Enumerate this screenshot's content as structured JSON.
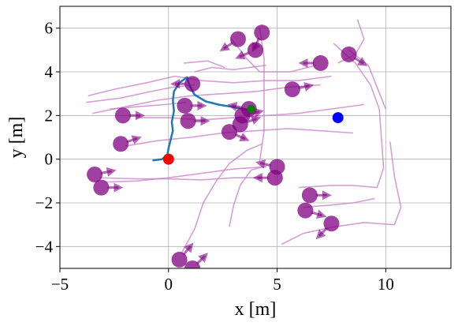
{
  "chart_data": {
    "type": "scatter",
    "title": "",
    "xlabel": "x [m]",
    "ylabel": "y [m]",
    "xlim": [
      -5,
      13
    ],
    "ylim": [
      -5,
      7
    ],
    "xticks": [
      -5,
      0,
      5,
      10
    ],
    "yticks": [
      -4,
      -2,
      0,
      2,
      4,
      6
    ],
    "xtick_labels": [
      "−5",
      "0",
      "5",
      "10"
    ],
    "ytick_labels": [
      "−4",
      "−2",
      "0",
      "2",
      "4",
      "6"
    ],
    "grid": true,
    "colors": {
      "agent": "#800080",
      "trail": "#c77fc7",
      "robot_path": "#1f77b4",
      "start": "#ff0000",
      "goal": "#0000ff",
      "current": "#008000"
    },
    "robot_path": [
      [
        -0.7,
        -0.05
      ],
      [
        -0.3,
        0.0
      ],
      [
        -0.05,
        0.2
      ],
      [
        0.0,
        0.5
      ],
      [
        0.1,
        0.9
      ],
      [
        0.2,
        1.3
      ],
      [
        0.15,
        1.7
      ],
      [
        0.25,
        2.2
      ],
      [
        0.2,
        2.7
      ],
      [
        0.25,
        3.1
      ],
      [
        0.5,
        3.5
      ],
      [
        0.85,
        3.75
      ],
      [
        0.95,
        3.4
      ],
      [
        1.2,
        2.95
      ],
      [
        1.7,
        2.65
      ],
      [
        2.3,
        2.5
      ],
      [
        2.9,
        2.4
      ],
      [
        3.4,
        2.3
      ],
      [
        3.8,
        2.25
      ]
    ],
    "start": [
      0.0,
      0.0
    ],
    "goal": [
      7.8,
      1.9
    ],
    "current": [
      3.8,
      2.3
    ],
    "agents": [
      {
        "x": 1.1,
        "y": 3.45,
        "dx": -1.0,
        "dy": 0.0
      },
      {
        "x": 3.2,
        "y": 5.5,
        "dx": -0.6,
        "dy": -0.4
      },
      {
        "x": 4.3,
        "y": 5.8,
        "dx": -0.3,
        "dy": -0.6
      },
      {
        "x": 4.0,
        "y": 5.0,
        "dx": -0.7,
        "dy": -0.3
      },
      {
        "x": 7.0,
        "y": 4.4,
        "dx": -1.0,
        "dy": 0.0
      },
      {
        "x": 8.3,
        "y": 4.8,
        "dx": 0.8,
        "dy": -0.5
      },
      {
        "x": 5.7,
        "y": 3.2,
        "dx": 1.0,
        "dy": 0.2
      },
      {
        "x": 0.75,
        "y": 2.45,
        "dx": 1.0,
        "dy": 0.0
      },
      {
        "x": 3.7,
        "y": 2.3,
        "dx": -1.0,
        "dy": 0.2
      },
      {
        "x": 3.4,
        "y": 2.0,
        "dx": 0.9,
        "dy": 0.2
      },
      {
        "x": 3.3,
        "y": 1.6,
        "dx": 0.9,
        "dy": 0.3
      },
      {
        "x": 2.8,
        "y": 1.25,
        "dx": 0.9,
        "dy": -0.4
      },
      {
        "x": 0.9,
        "y": 1.75,
        "dx": 1.0,
        "dy": 0.0
      },
      {
        "x": -2.1,
        "y": 2.0,
        "dx": 1.0,
        "dy": 0.0
      },
      {
        "x": -2.2,
        "y": 0.7,
        "dx": 0.9,
        "dy": 0.3
      },
      {
        "x": -3.4,
        "y": -0.7,
        "dx": 1.0,
        "dy": 0.2
      },
      {
        "x": -3.1,
        "y": -1.3,
        "dx": 1.0,
        "dy": 0.0
      },
      {
        "x": 5.0,
        "y": -0.35,
        "dx": -0.9,
        "dy": 0.2
      },
      {
        "x": 4.9,
        "y": -0.85,
        "dx": -0.9,
        "dy": 0.0
      },
      {
        "x": 6.5,
        "y": -1.65,
        "dx": 1.0,
        "dy": 0.0
      },
      {
        "x": 6.3,
        "y": -2.35,
        "dx": 1.0,
        "dy": -0.3
      },
      {
        "x": 7.5,
        "y": -2.95,
        "dx": -0.6,
        "dy": -0.6
      },
      {
        "x": 0.5,
        "y": -4.6,
        "dx": 0.5,
        "dy": 0.6
      },
      {
        "x": 1.1,
        "y": -5.0,
        "dx": 0.6,
        "dy": 0.6
      }
    ],
    "trails": [
      [
        [
          -3.7,
          2.9
        ],
        [
          -2.5,
          3.2
        ],
        [
          -1.0,
          3.5
        ],
        [
          0.3,
          3.8
        ],
        [
          1.5,
          3.6
        ],
        [
          3.0,
          3.5
        ],
        [
          4.5,
          3.6
        ],
        [
          6.0,
          3.6
        ],
        [
          7.5,
          3.8
        ]
      ],
      [
        [
          -3.5,
          2.1
        ],
        [
          -2.0,
          2.4
        ],
        [
          -0.5,
          2.7
        ],
        [
          1.0,
          2.9
        ],
        [
          2.5,
          3.0
        ],
        [
          4.0,
          3.1
        ],
        [
          5.5,
          3.3
        ],
        [
          7.0,
          3.4
        ]
      ],
      [
        [
          -3.8,
          2.6
        ],
        [
          -2.2,
          2.8
        ],
        [
          -0.8,
          3.1
        ],
        [
          0.2,
          3.3
        ],
        [
          1.2,
          3.4
        ]
      ],
      [
        [
          -2.7,
          2.3
        ],
        [
          -1.5,
          2.4
        ],
        [
          -0.2,
          2.5
        ],
        [
          0.8,
          2.6
        ]
      ],
      [
        [
          -2.0,
          0.6
        ],
        [
          -0.5,
          0.85
        ],
        [
          1.0,
          1.0
        ],
        [
          2.5,
          1.2
        ],
        [
          4.0,
          1.3
        ],
        [
          5.5,
          1.4
        ],
        [
          7.0,
          1.3
        ],
        [
          8.5,
          1.2
        ]
      ],
      [
        [
          -1.5,
          1.9
        ],
        [
          0.0,
          1.9
        ],
        [
          1.5,
          1.8
        ],
        [
          3.0,
          1.9
        ],
        [
          4.5,
          2.0
        ],
        [
          6.0,
          2.1
        ],
        [
          7.5,
          2.3
        ],
        [
          9.0,
          2.5
        ]
      ],
      [
        [
          -3.2,
          -0.85
        ],
        [
          -1.5,
          -0.9
        ],
        [
          0.0,
          -0.9
        ],
        [
          1.5,
          -0.95
        ],
        [
          3.0,
          -0.85
        ],
        [
          4.3,
          -0.85
        ]
      ],
      [
        [
          -2.9,
          -1.05
        ],
        [
          -1.5,
          -1.0
        ],
        [
          0.0,
          -0.85
        ],
        [
          1.5,
          -0.65
        ],
        [
          3.0,
          -0.45
        ],
        [
          4.5,
          -0.35
        ]
      ],
      [
        [
          0.6,
          -4.3
        ],
        [
          1.2,
          -3.2
        ],
        [
          1.6,
          -2.0
        ],
        [
          2.2,
          -1.0
        ],
        [
          2.8,
          -0.2
        ],
        [
          3.6,
          0.4
        ],
        [
          4.3,
          0.7
        ]
      ],
      [
        [
          2.8,
          -3.1
        ],
        [
          3.0,
          -2.1
        ],
        [
          3.3,
          -1.2
        ],
        [
          3.8,
          -0.5
        ],
        [
          4.5,
          -0.3
        ]
      ],
      [
        [
          6.0,
          -1.3
        ],
        [
          7.5,
          -1.2
        ],
        [
          8.5,
          -1.2
        ],
        [
          9.6,
          -1.3
        ],
        [
          9.9,
          -0.4
        ],
        [
          9.8,
          1.0
        ],
        [
          9.7,
          2.3
        ],
        [
          9.3,
          3.4
        ],
        [
          8.6,
          4.4
        ],
        [
          7.6,
          5.3
        ]
      ],
      [
        [
          5.2,
          -3.9
        ],
        [
          6.2,
          -3.4
        ],
        [
          7.6,
          -3.1
        ],
        [
          9.0,
          -2.9
        ],
        [
          10.4,
          -3.0
        ],
        [
          10.7,
          -2.2
        ],
        [
          10.4,
          -0.8
        ],
        [
          10.2,
          0.8
        ]
      ],
      [
        [
          6.2,
          -2.2
        ],
        [
          7.5,
          -2.1
        ],
        [
          8.5,
          -2.0
        ],
        [
          9.5,
          -1.8
        ]
      ],
      [
        [
          8.7,
          6.4
        ],
        [
          9.0,
          5.5
        ],
        [
          8.6,
          4.8
        ],
        [
          7.8,
          4.4
        ]
      ],
      [
        [
          8.3,
          5.0
        ],
        [
          9.2,
          4.3
        ],
        [
          9.6,
          3.3
        ],
        [
          10.0,
          2.3
        ]
      ],
      [
        [
          4.2,
          6.0
        ],
        [
          4.4,
          4.6
        ],
        [
          4.4,
          3.0
        ],
        [
          4.4,
          1.3
        ],
        [
          4.2,
          -0.1
        ]
      ],
      [
        [
          2.9,
          5.5
        ],
        [
          3.6,
          4.6
        ],
        [
          4.2,
          4.0
        ],
        [
          5.6,
          4.0
        ],
        [
          6.8,
          4.3
        ]
      ],
      [
        [
          1.2,
          4.0
        ],
        [
          2.0,
          4.2
        ],
        [
          3.0,
          4.1
        ],
        [
          4.5,
          4.3
        ]
      ],
      [
        [
          0.7,
          4.4
        ],
        [
          1.8,
          4.5
        ],
        [
          2.6,
          4.2
        ]
      ]
    ]
  }
}
